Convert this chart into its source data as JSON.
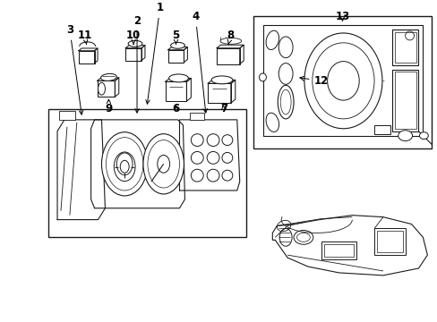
{
  "bg_color": "#ffffff",
  "line_color": "#1a1a1a",
  "figsize": [
    4.89,
    3.6
  ],
  "dpi": 100,
  "label_fontsize": 8.5,
  "lw": 0.8
}
